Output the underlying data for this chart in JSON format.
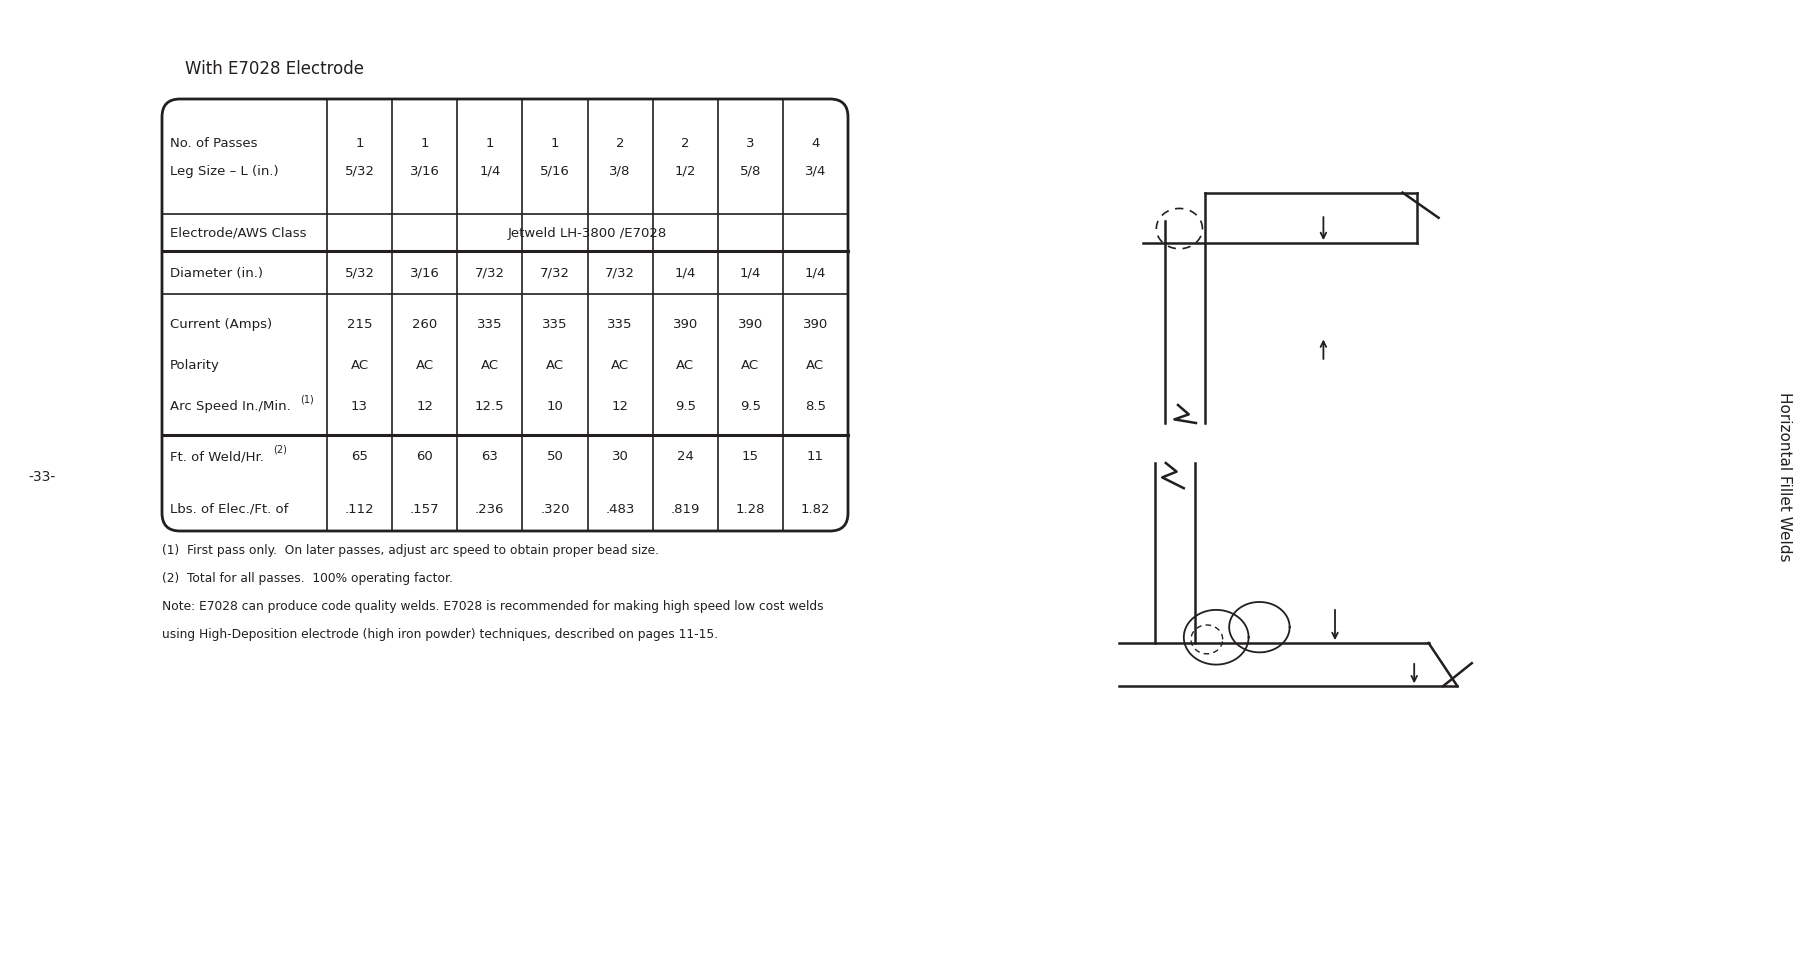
{
  "title": "With E7028 Electrode",
  "sidebar_text": "Horizontal Fillet Welds",
  "page_number": "-33-",
  "footnotes": [
    "(1)  First pass only.  On later passes, adjust arc speed to obtain proper bead size.",
    "(2)  Total for all passes.  100% operating factor.",
    "Note: E7028 can produce code quality welds. E7028 is recommended for making high speed low cost welds",
    "using High-Deposition electrode (high iron powder) techniques, described on pages 11-15."
  ],
  "header_row": {
    "label1": "No. of Passes",
    "label2": "Leg Size – L (in.)",
    "passes": [
      "1",
      "1",
      "1",
      "1",
      "2",
      "2",
      "3",
      "4"
    ],
    "sizes": [
      "5/32",
      "3/16",
      "1/4",
      "5/16",
      "3/8",
      "1/2",
      "5/8",
      "3/4"
    ]
  },
  "electrode_row": {
    "label": "Electrode/AWS Class",
    "value": "Jetweld LH-3800 /E7028"
  },
  "diameter_row": {
    "label": "Diameter (in.)",
    "values": [
      "5/32",
      "3/16",
      "7/32",
      "7/32",
      "7/32",
      "1/4",
      "1/4",
      "1/4"
    ]
  },
  "current_row": {
    "label1": "Current (Amps)",
    "label2": "Polarity",
    "label3": "Arc Speed In./Min.",
    "label3_super": "(1)",
    "amps": [
      "215",
      "260",
      "335",
      "335",
      "335",
      "390",
      "390",
      "390"
    ],
    "pol": [
      "AC",
      "AC",
      "AC",
      "AC",
      "AC",
      "AC",
      "AC",
      "AC"
    ],
    "speed": [
      "13",
      "12",
      "12.5",
      "10",
      "12",
      "9.5",
      "9.5",
      "8.5"
    ]
  },
  "weld_row": {
    "label1": "Ft. of Weld/Hr.",
    "label1_super": "(2)",
    "label2": "Lbs. of Elec./Ft. of",
    "ft": [
      "65",
      "60",
      "63",
      "50",
      "30",
      "24",
      "15",
      "11"
    ],
    "lbs": [
      ".112",
      ".157",
      ".236",
      ".320",
      ".483",
      ".819",
      "1.28",
      "1.82"
    ]
  },
  "bg_color": "#ffffff",
  "text_color": "#231f20",
  "border_color": "#231f20"
}
